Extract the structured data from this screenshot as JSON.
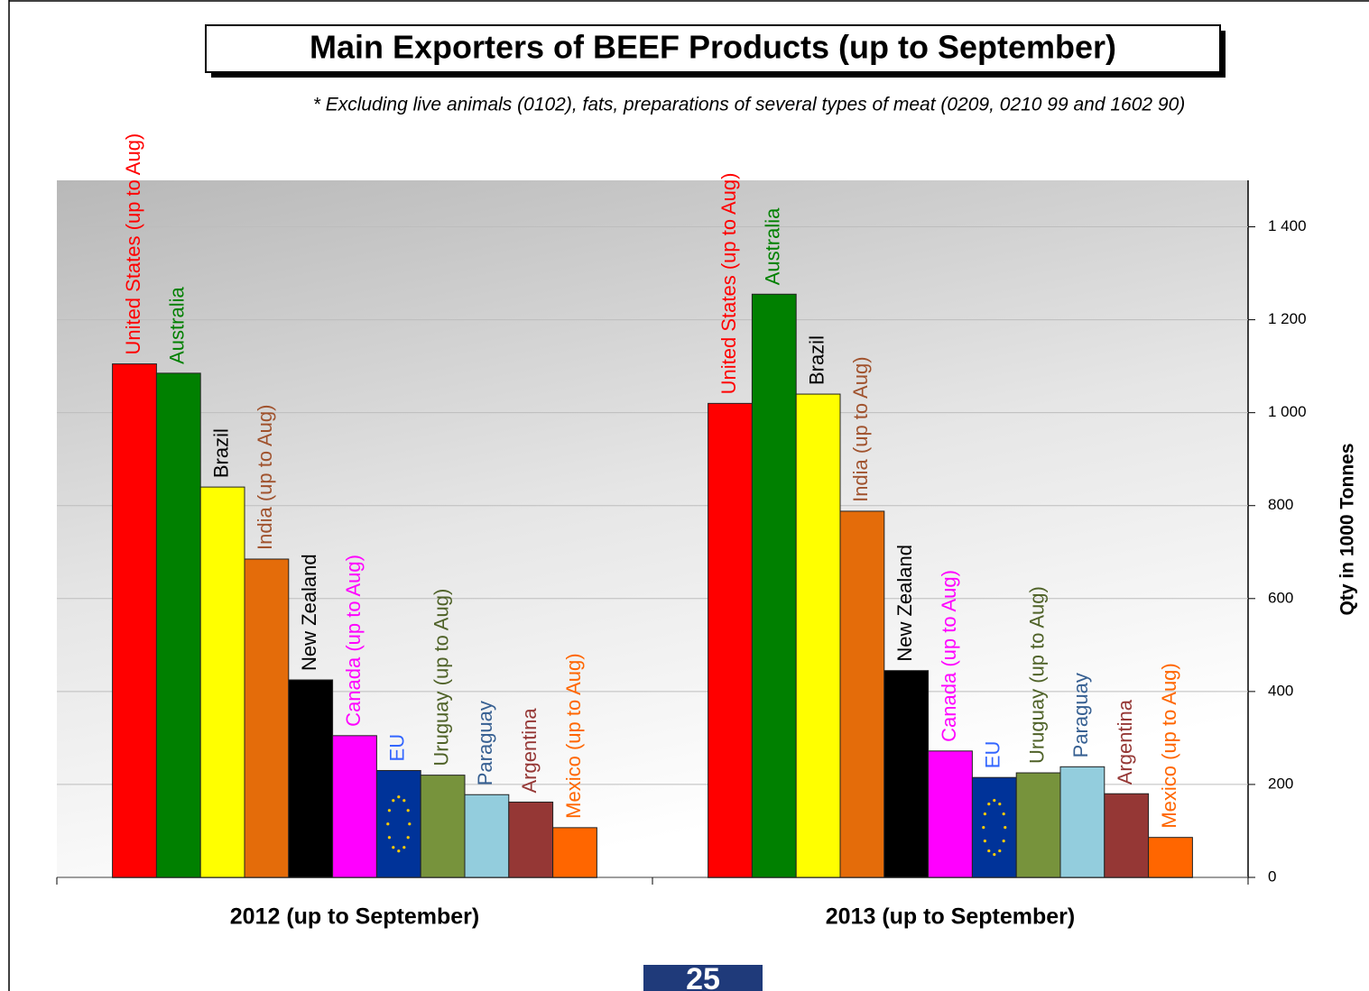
{
  "chart_data": {
    "type": "bar",
    "title": "Main Exporters of BEEF Products (up to September)",
    "subtitle": "* Excluding live animals (0102), fats, preparations of several types of meat (0209, 0210 99 and 1602 90)",
    "y_label": "Qty in 1000 Tonnes",
    "page_number": "25",
    "categories": [
      "2012 (up to September)",
      "2013 (up to September)"
    ],
    "series": [
      {
        "name": "United States (up to Aug)",
        "color": "#ff0000",
        "label_color": "#ff0000",
        "values": [
          1105,
          1020
        ]
      },
      {
        "name": "Australia",
        "color": "#008000",
        "label_color": "#008000",
        "values": [
          1085,
          1255
        ]
      },
      {
        "name": "Brazil",
        "color": "#ffff00",
        "label_color": "#000000",
        "values": [
          840,
          1040
        ]
      },
      {
        "name": "India (up to Aug)",
        "color": "#e46c0a",
        "label_color": "#a0522d",
        "values": [
          685,
          788
        ]
      },
      {
        "name": "New Zealand",
        "color": "#000000",
        "label_color": "#000000",
        "values": [
          425,
          445
        ]
      },
      {
        "name": "Canada (up to Aug)",
        "color": "#ff00ff",
        "label_color": "#ff00ff",
        "values": [
          305,
          272
        ]
      },
      {
        "name": "EU",
        "color": "#003399",
        "label_color": "#3366ff",
        "values": [
          230,
          215
        ]
      },
      {
        "name": "Uruguay (up to Aug)",
        "color": "#77933c",
        "label_color": "#4f6228",
        "values": [
          220,
          225
        ]
      },
      {
        "name": "Paraguay",
        "color": "#93cddd",
        "label_color": "#376092",
        "values": [
          178,
          238
        ]
      },
      {
        "name": "Argentina",
        "color": "#953735",
        "label_color": "#953735",
        "values": [
          162,
          180
        ]
      },
      {
        "name": "Mexico (up to Aug)",
        "color": "#ff6600",
        "label_color": "#ff6600",
        "values": [
          107,
          86
        ]
      }
    ],
    "ylim": [
      0,
      1500
    ],
    "yticks": [
      0,
      200,
      400,
      600,
      800,
      {
        "value": 1000,
        "label": "1 000"
      },
      {
        "value": 1200,
        "label": "1 200"
      },
      {
        "value": 1400,
        "label": "1 400"
      }
    ]
  }
}
